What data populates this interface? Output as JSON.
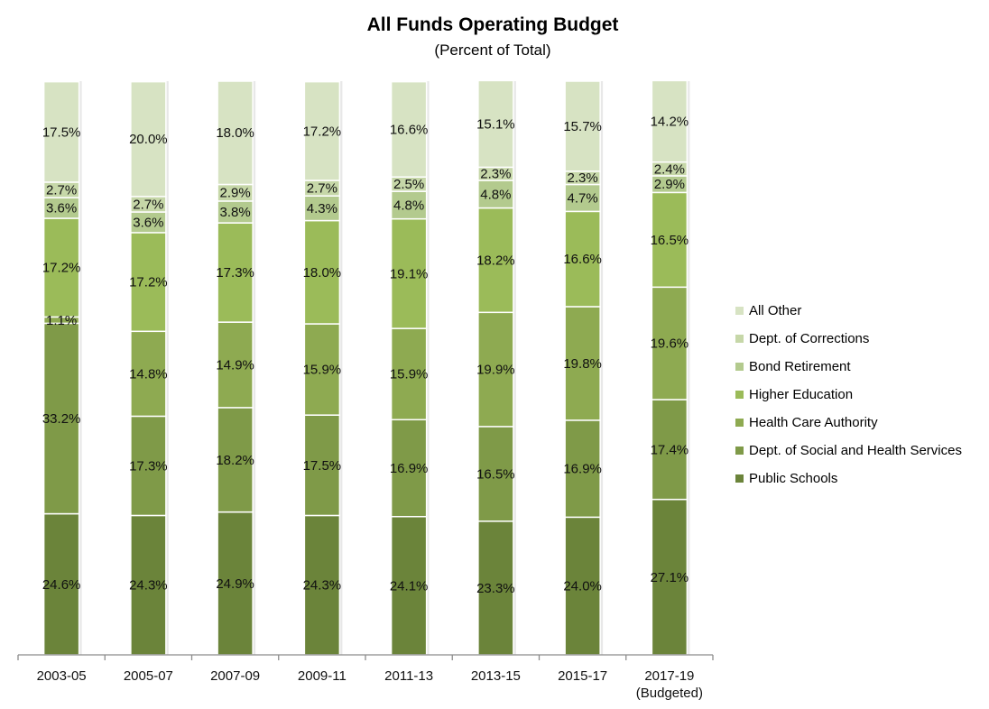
{
  "chart_data": {
    "type": "bar",
    "stacked": true,
    "title": "All Funds Operating Budget",
    "subtitle": "(Percent of Total)",
    "xlabel": "",
    "ylabel": "",
    "ylim": [
      0,
      100
    ],
    "grid": false,
    "legend_position": "right",
    "categories": [
      "2003-05",
      "2005-07",
      "2007-09",
      "2009-11",
      "2011-13",
      "2013-15",
      "2015-17",
      "2017-19\n(Budgeted)"
    ],
    "series": [
      {
        "name": "Public Schools",
        "color": "#6B843A",
        "values": [
          24.6,
          24.3,
          24.9,
          24.3,
          24.1,
          23.3,
          24.0,
          27.1
        ]
      },
      {
        "name": "Dept. of Social and Health Services",
        "color": "#7F9A48",
        "values": [
          33.2,
          17.3,
          18.2,
          17.5,
          16.9,
          16.5,
          16.9,
          17.4
        ]
      },
      {
        "name": "Health Care Authority",
        "color": "#8EAA51",
        "values": [
          1.1,
          14.8,
          14.9,
          15.9,
          15.9,
          19.9,
          19.8,
          19.6
        ]
      },
      {
        "name": "Higher Education",
        "color": "#9BBB59",
        "values": [
          17.2,
          17.2,
          17.3,
          18.0,
          19.1,
          18.2,
          16.6,
          16.5
        ]
      },
      {
        "name": "Bond Retirement",
        "color": "#B3CA8E",
        "values": [
          3.6,
          3.6,
          3.8,
          4.3,
          4.8,
          4.8,
          4.7,
          2.9
        ]
      },
      {
        "name": "Dept. of Corrections",
        "color": "#C6D7A8",
        "values": [
          2.7,
          2.7,
          2.9,
          2.7,
          2.5,
          2.3,
          2.3,
          2.4
        ]
      },
      {
        "name": "All Other",
        "color": "#D7E3C3",
        "values": [
          17.5,
          20.0,
          18.0,
          17.2,
          16.6,
          15.1,
          15.7,
          14.2
        ]
      }
    ],
    "value_format": "{v}%"
  },
  "legend_order": [
    "All Other",
    "Dept. of Corrections",
    "Bond Retirement",
    "Higher Education",
    "Health Care Authority",
    "Dept. of Social and Health Services",
    "Public Schools"
  ]
}
